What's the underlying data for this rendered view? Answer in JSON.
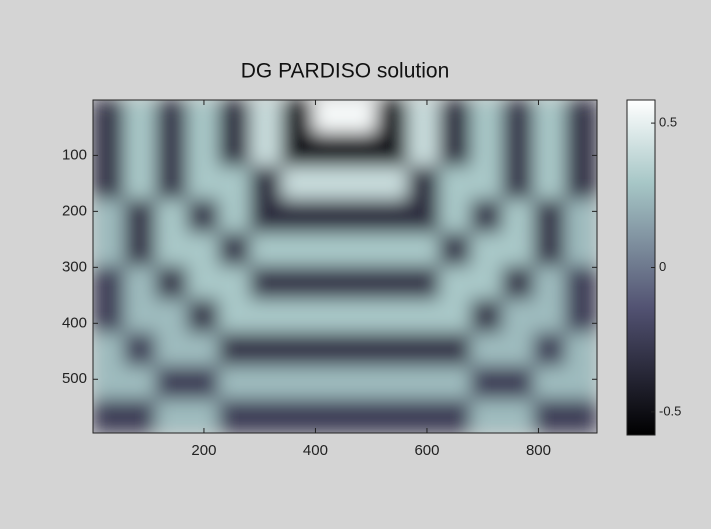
{
  "chart_data": {
    "type": "heatmap",
    "title": "DG PARDISO solution",
    "colormap": "bone",
    "xlim": [
      1,
      905
    ],
    "xticks": [
      200,
      400,
      600,
      800
    ],
    "ylim": [
      1,
      596
    ],
    "yticks": [
      100,
      200,
      300,
      400,
      500
    ],
    "y_reversed": true,
    "clim": [
      -0.58,
      0.58
    ],
    "colorbar_ticks": [
      -0.5,
      0,
      0.5
    ],
    "z": [
      [
        -0.3,
        0.3,
        -0.3,
        0.3,
        -0.35,
        0.4,
        -0.5,
        0.55,
        0.55,
        -0.5,
        0.4,
        -0.35,
        0.3,
        -0.3,
        0.3,
        -0.3
      ],
      [
        -0.3,
        0.3,
        -0.3,
        0.3,
        -0.35,
        0.4,
        -0.5,
        -0.5,
        -0.5,
        -0.5,
        0.4,
        -0.35,
        0.3,
        -0.3,
        0.3,
        -0.3
      ],
      [
        -0.3,
        0.3,
        -0.3,
        0.3,
        0.3,
        -0.35,
        0.4,
        0.4,
        0.4,
        0.4,
        -0.35,
        0.3,
        0.3,
        -0.3,
        0.3,
        -0.3
      ],
      [
        0.25,
        -0.3,
        0.3,
        -0.3,
        0.3,
        -0.35,
        -0.35,
        -0.35,
        -0.35,
        -0.35,
        -0.35,
        0.3,
        -0.3,
        0.3,
        -0.3,
        0.25
      ],
      [
        0.25,
        -0.3,
        0.3,
        0.3,
        -0.3,
        0.3,
        0.3,
        0.3,
        0.3,
        0.3,
        0.3,
        -0.3,
        0.3,
        0.3,
        -0.3,
        0.25
      ],
      [
        -0.25,
        0.25,
        -0.3,
        0.3,
        0.3,
        -0.3,
        -0.3,
        -0.3,
        -0.3,
        -0.3,
        -0.3,
        0.3,
        0.3,
        -0.3,
        0.25,
        -0.25
      ],
      [
        -0.25,
        0.25,
        0.25,
        -0.3,
        0.3,
        0.3,
        0.3,
        0.3,
        0.3,
        0.3,
        0.3,
        0.3,
        -0.3,
        0.25,
        0.25,
        -0.25
      ],
      [
        0.25,
        -0.25,
        0.25,
        0.25,
        -0.3,
        -0.3,
        -0.3,
        -0.3,
        -0.3,
        -0.3,
        -0.3,
        -0.3,
        0.25,
        0.25,
        -0.25,
        0.25
      ],
      [
        0.25,
        0.25,
        -0.25,
        -0.25,
        0.25,
        0.25,
        0.25,
        0.25,
        0.25,
        0.25,
        0.25,
        0.25,
        -0.25,
        -0.25,
        0.25,
        0.25
      ],
      [
        -0.25,
        -0.25,
        0.25,
        0.25,
        -0.25,
        -0.25,
        -0.25,
        -0.25,
        -0.25,
        -0.25,
        -0.25,
        -0.25,
        0.25,
        0.25,
        -0.25,
        -0.25
      ]
    ]
  }
}
